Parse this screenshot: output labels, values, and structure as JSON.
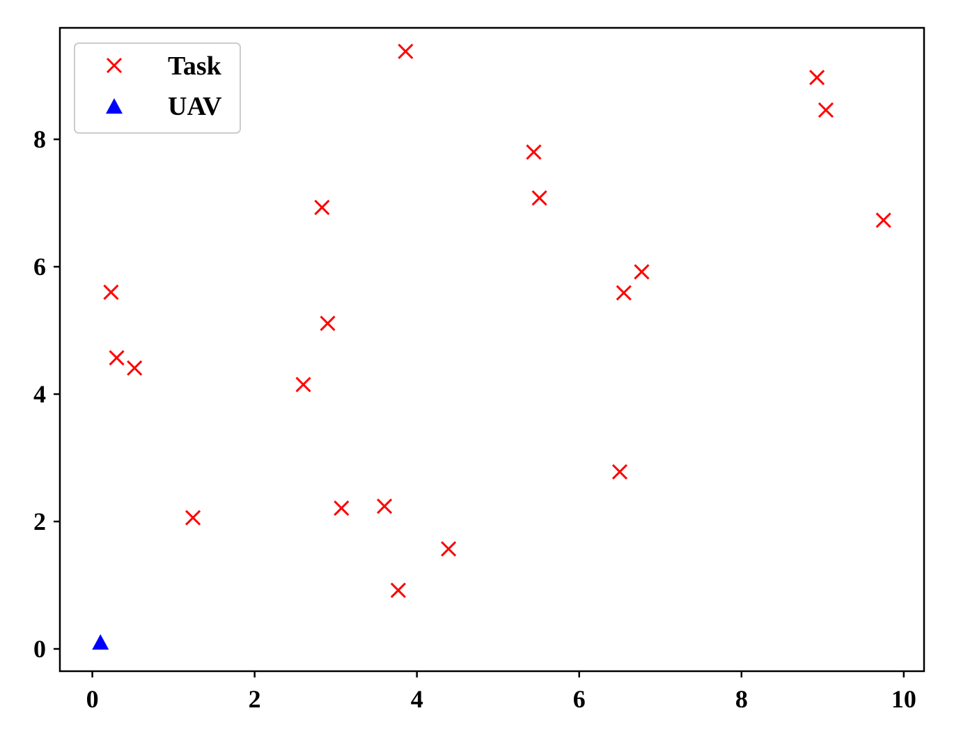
{
  "chart_data": {
    "type": "scatter",
    "title": "",
    "xlabel": "",
    "ylabel": "",
    "xlim": [
      -0.4,
      10.25
    ],
    "ylim": [
      -0.35,
      9.75
    ],
    "xticks": [
      0,
      2,
      4,
      6,
      8,
      10
    ],
    "yticks": [
      0,
      2,
      4,
      6,
      8
    ],
    "xtick_labels": [
      "0",
      "2",
      "4",
      "6",
      "8",
      "10"
    ],
    "ytick_labels": [
      "0",
      "2",
      "4",
      "6",
      "8"
    ],
    "grid": false,
    "legend_position": "top-left",
    "series": [
      {
        "name": "Task",
        "marker": "x",
        "color": "#ff0000",
        "points": [
          [
            0.23,
            5.6
          ],
          [
            0.3,
            4.57
          ],
          [
            0.52,
            4.41
          ],
          [
            1.24,
            2.06
          ],
          [
            2.6,
            4.15
          ],
          [
            2.83,
            6.93
          ],
          [
            2.9,
            5.11
          ],
          [
            3.07,
            2.21
          ],
          [
            3.6,
            2.24
          ],
          [
            3.77,
            0.92
          ],
          [
            3.86,
            9.38
          ],
          [
            4.39,
            1.57
          ],
          [
            5.44,
            7.8
          ],
          [
            5.51,
            7.08
          ],
          [
            6.5,
            2.78
          ],
          [
            6.55,
            5.59
          ],
          [
            6.77,
            5.92
          ],
          [
            8.93,
            8.97
          ],
          [
            9.04,
            8.46
          ],
          [
            9.75,
            6.73
          ]
        ]
      },
      {
        "name": "UAV",
        "marker": "triangle",
        "color": "#0000ff",
        "points": [
          [
            0.1,
            0.1
          ]
        ]
      }
    ]
  }
}
